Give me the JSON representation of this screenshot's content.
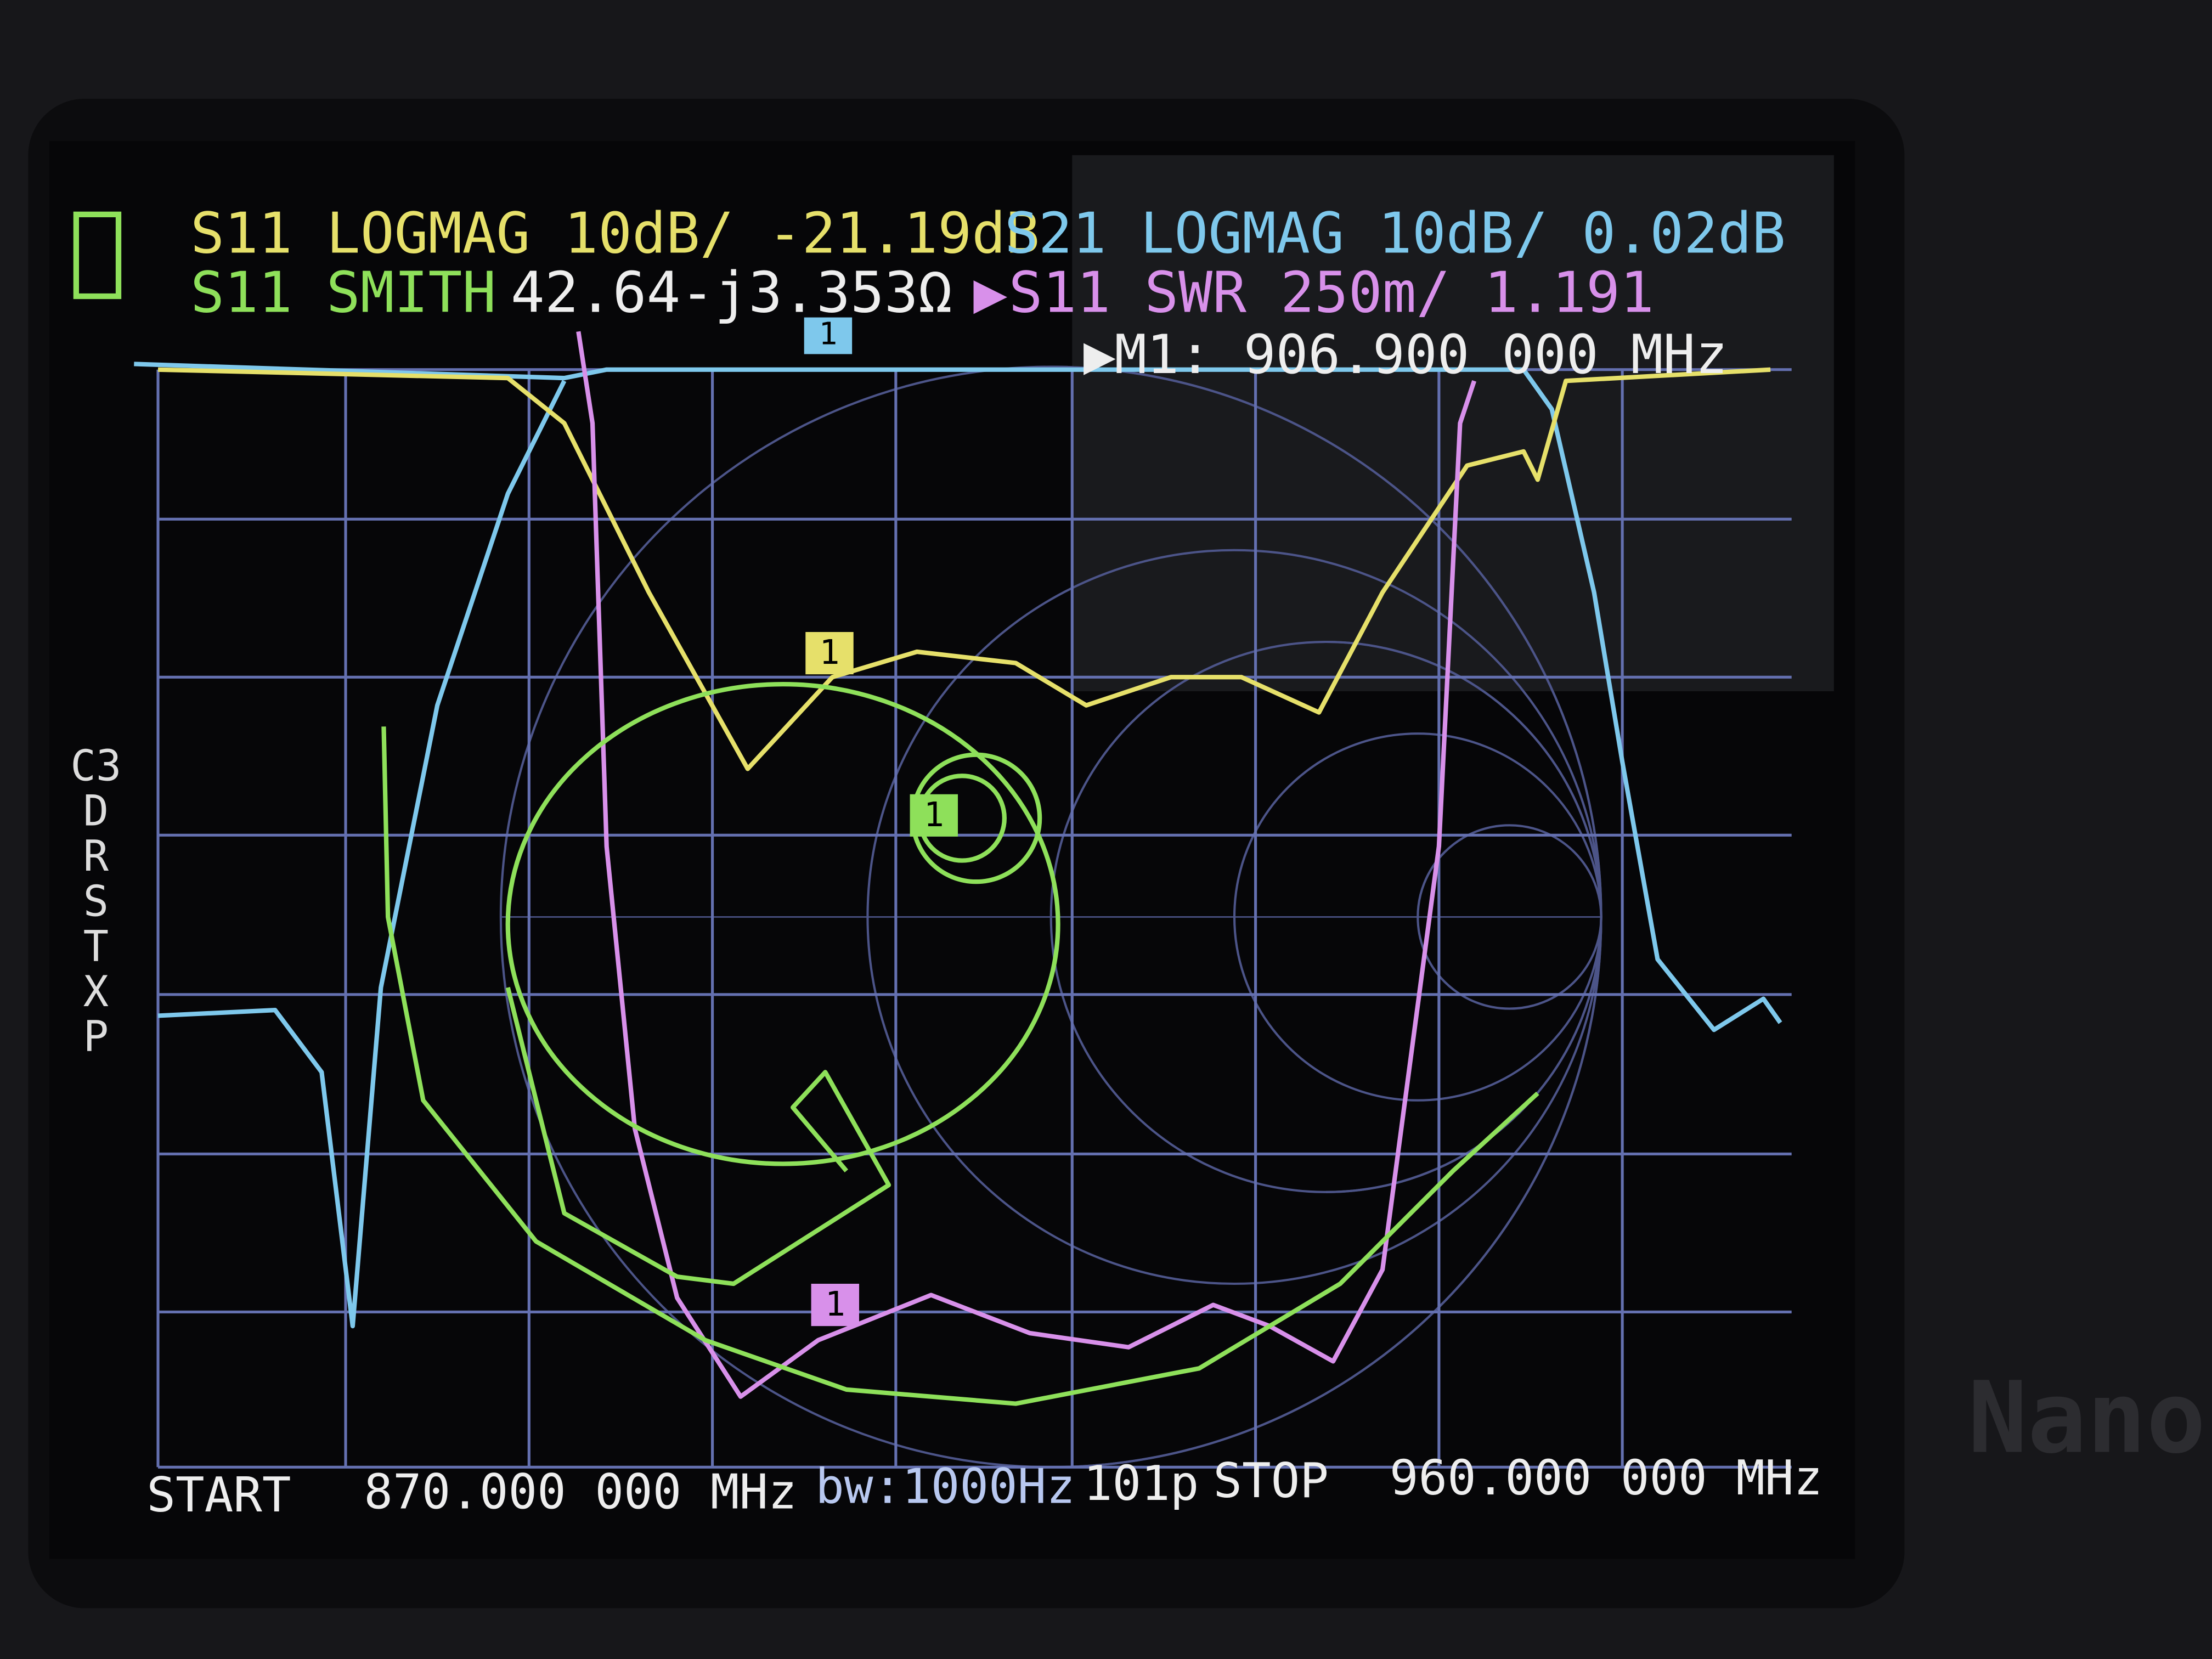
{
  "status_bar": {
    "trace1": "S11 LOGMAG 10dB/ -21.19dB",
    "trace2": "S21 LOGMAG 10dB/ 0.02dB",
    "trace3_label": "S11 SMITH",
    "trace3_value": "42.64-j3.353Ω",
    "trace4": "S11 SWR 250m/ 1.191",
    "marker": "M1: 906.900 000 MHz"
  },
  "side_menu": [
    "C3",
    "D",
    "R",
    "S",
    "T",
    "X",
    "P"
  ],
  "markers": [
    "1",
    "1",
    "1",
    "1"
  ],
  "footer": {
    "start_label": "START",
    "start": "870.000 000 MHz",
    "bandwidth": "bw:1000Hz",
    "points": "101p",
    "stop_label": "STOP",
    "stop": "960.000 000 MHz"
  },
  "device_brand": "Nano"
}
